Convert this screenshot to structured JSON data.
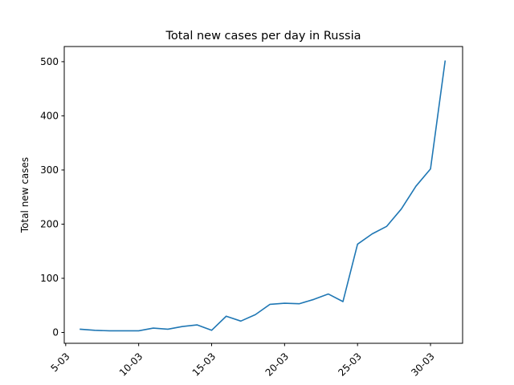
{
  "chart_data": {
    "type": "line",
    "title": "Total new cases per day in Russia",
    "xlabel": "",
    "ylabel": "Total new cases",
    "x_ticks": [
      "5-03",
      "10-03",
      "15-03",
      "20-03",
      "25-03",
      "30-03"
    ],
    "x_tick_days": [
      5,
      10,
      15,
      20,
      25,
      30
    ],
    "xlim": [
      4.9,
      32.2
    ],
    "ylim": [
      -20,
      528
    ],
    "y_ticks": [
      0,
      100,
      200,
      300,
      400,
      500
    ],
    "grid": false,
    "series": [
      {
        "color": "#1f77b4",
        "x": [
          6,
          7,
          8,
          9,
          10,
          11,
          12,
          13,
          14,
          15,
          16,
          17,
          18,
          19,
          20,
          21,
          22,
          23,
          24,
          25,
          26,
          27,
          28,
          29,
          30,
          31
        ],
        "y": [
          6,
          4,
          3,
          3,
          3,
          8,
          6,
          11,
          14,
          4,
          30,
          21,
          33,
          52,
          54,
          53,
          61,
          71,
          57,
          163,
          182,
          196,
          228,
          270,
          302,
          501
        ]
      }
    ]
  }
}
